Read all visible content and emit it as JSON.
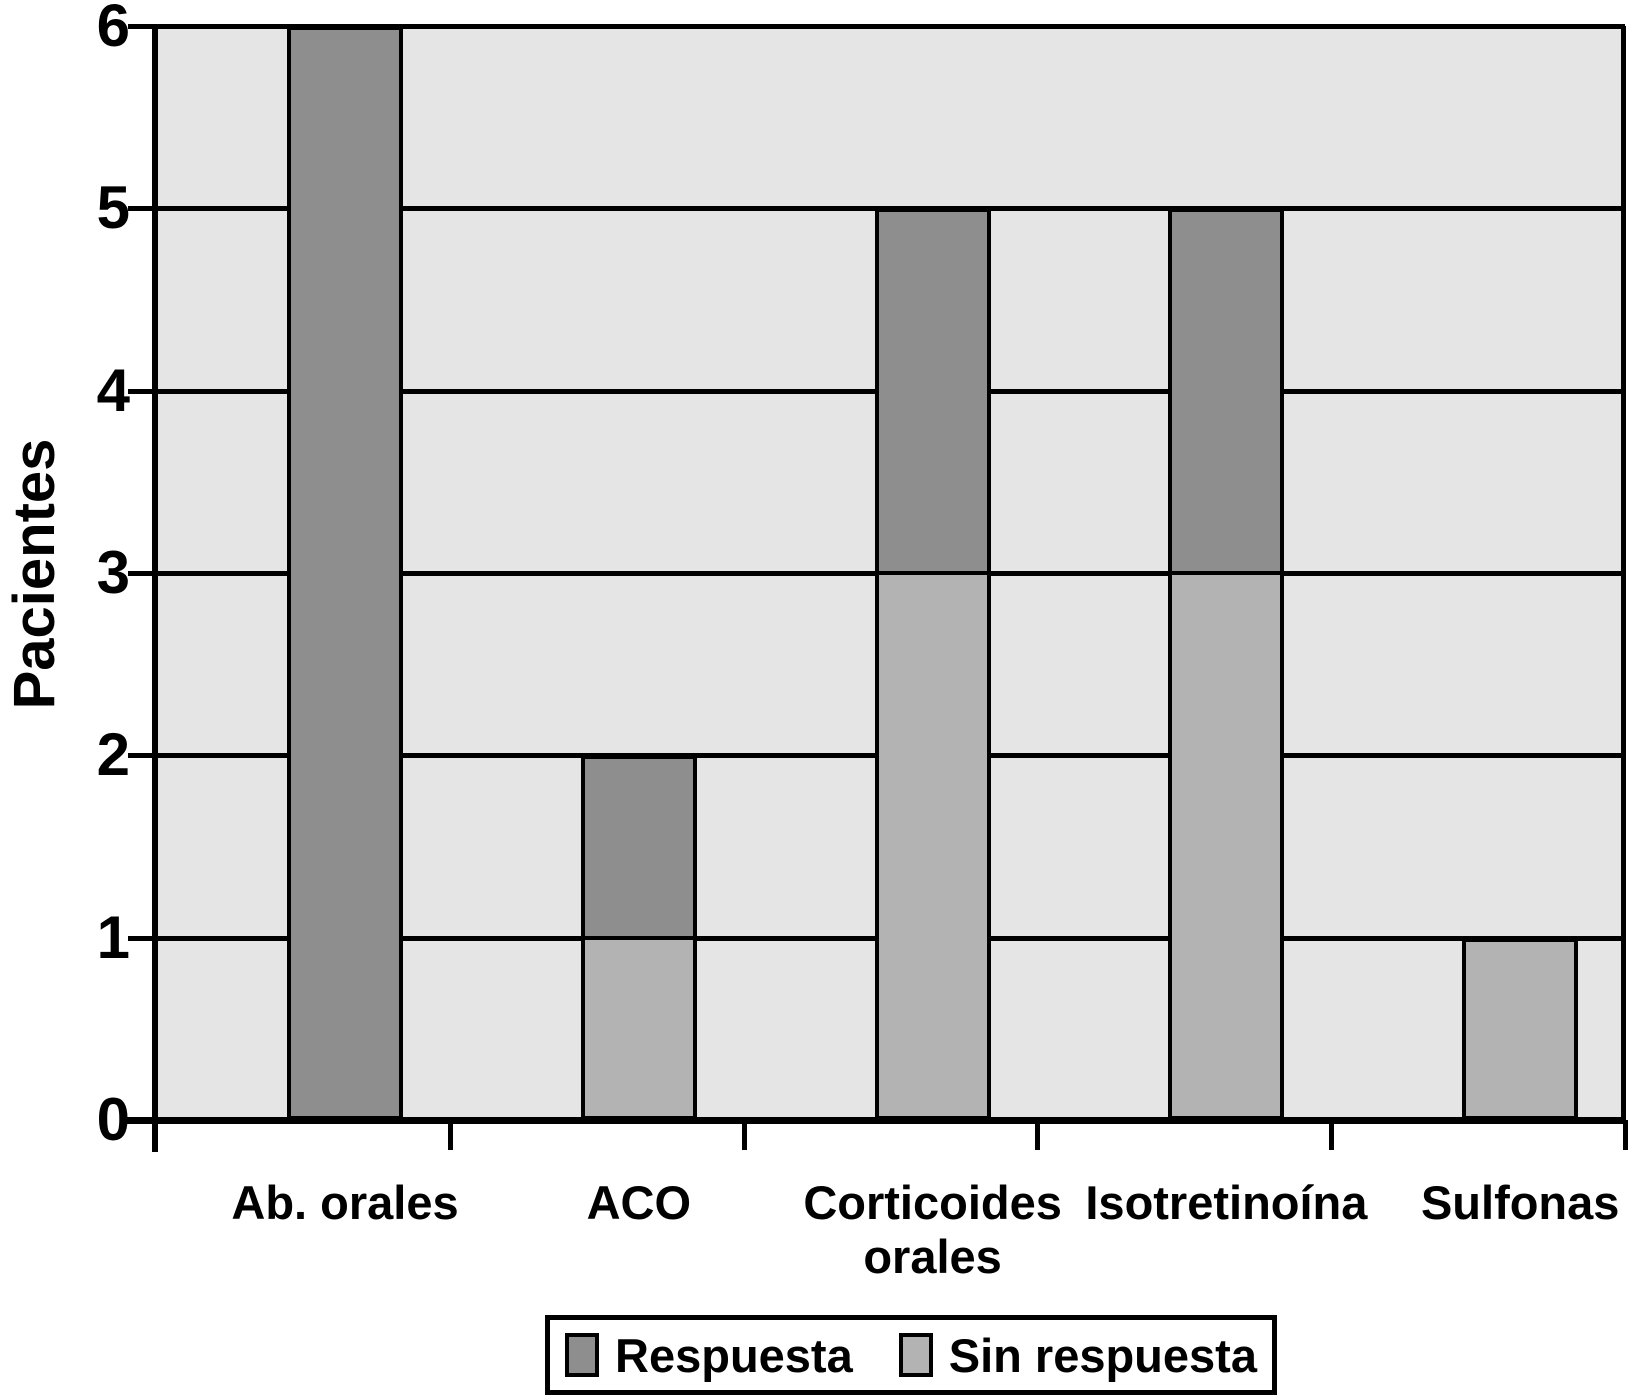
{
  "chart_data": {
    "type": "bar",
    "stacked": true,
    "orientation": "vertical",
    "title": "",
    "xlabel": "",
    "ylabel": "Pacientes",
    "categories": [
      "Ab. orales",
      "ACO",
      "Corticoides\norales",
      "Isotretinoína",
      "Sulfonas"
    ],
    "series": [
      {
        "name": "Respuesta",
        "color": "#8e8e8e",
        "values": [
          6,
          1,
          2,
          2,
          0
        ]
      },
      {
        "name": "Sin respuesta",
        "color": "#b3b3b3",
        "values": [
          0,
          1,
          3,
          3,
          1
        ]
      }
    ],
    "stack_bottom_to_top": [
      "Sin respuesta",
      "Respuesta"
    ],
    "ylim": [
      0,
      6
    ],
    "yticks": [
      "0",
      "1",
      "2",
      "3",
      "4",
      "5",
      "6"
    ],
    "grid": "horizontal",
    "legend_position": "bottom",
    "plot_background": "#e5e5e5",
    "axis_color": "#000000",
    "page_background": "#ffffff"
  }
}
